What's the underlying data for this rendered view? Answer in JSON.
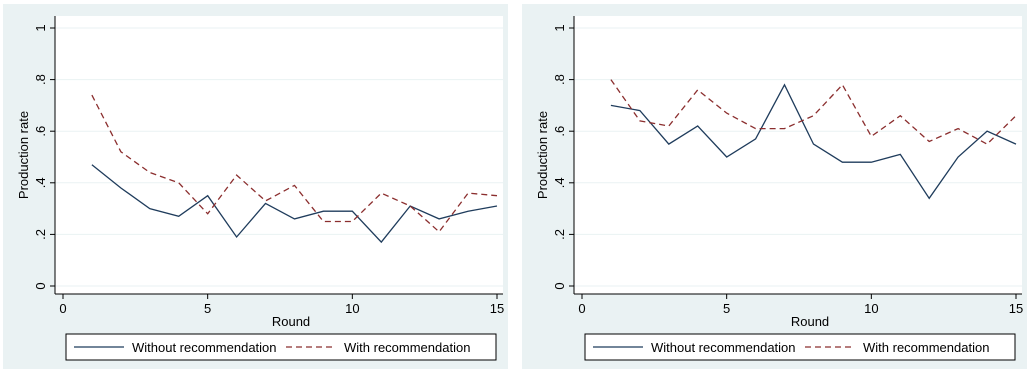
{
  "colors": {
    "panel_bg": "#eaf2f3",
    "plot_bg": "#ffffff",
    "grid": "#eaf2f3",
    "series_without": "#1f3c5c",
    "series_with": "#8b2e2e"
  },
  "chart_data": [
    {
      "type": "line",
      "xlabel": "Round",
      "ylabel": "Production rate",
      "xlim": [
        0,
        15
      ],
      "ylim": [
        0,
        1
      ],
      "xticks": [
        0,
        5,
        10,
        15
      ],
      "xtick_labels": [
        "0",
        "5",
        "10",
        "15"
      ],
      "yticks": [
        0,
        0.2,
        0.4,
        0.6,
        0.8,
        1
      ],
      "ytick_labels": [
        "0",
        ".2",
        ".4",
        ".6",
        ".8",
        "1"
      ],
      "grid": true,
      "legend_position": "bottom",
      "x": [
        1,
        2,
        3,
        4,
        5,
        6,
        7,
        8,
        9,
        10,
        11,
        12,
        13,
        14,
        15
      ],
      "series": [
        {
          "name": "Without recommendation",
          "style": "solid",
          "values": [
            0.47,
            0.38,
            0.3,
            0.27,
            0.35,
            0.19,
            0.32,
            0.26,
            0.29,
            0.29,
            0.17,
            0.31,
            0.26,
            0.29,
            0.31
          ]
        },
        {
          "name": "With recommendation",
          "style": "dashed",
          "values": [
            0.74,
            0.52,
            0.44,
            0.4,
            0.28,
            0.43,
            0.33,
            0.39,
            0.25,
            0.25,
            0.36,
            0.31,
            0.21,
            0.36,
            0.35
          ]
        }
      ]
    },
    {
      "type": "line",
      "xlabel": "Round",
      "ylabel": "Production rate",
      "xlim": [
        0,
        15
      ],
      "ylim": [
        0,
        1
      ],
      "xticks": [
        0,
        5,
        10,
        15
      ],
      "xtick_labels": [
        "0",
        "5",
        "10",
        "15"
      ],
      "yticks": [
        0,
        0.2,
        0.4,
        0.6,
        0.8,
        1
      ],
      "ytick_labels": [
        "0",
        ".2",
        ".4",
        ".6",
        ".8",
        "1"
      ],
      "grid": true,
      "legend_position": "bottom",
      "x": [
        1,
        2,
        3,
        4,
        5,
        6,
        7,
        8,
        9,
        10,
        11,
        12,
        13,
        14,
        15
      ],
      "series": [
        {
          "name": "Without recommendation",
          "style": "solid",
          "values": [
            0.7,
            0.68,
            0.55,
            0.62,
            0.5,
            0.57,
            0.78,
            0.55,
            0.48,
            0.48,
            0.51,
            0.34,
            0.5,
            0.6,
            0.55
          ]
        },
        {
          "name": "With recommendation",
          "style": "dashed",
          "values": [
            0.8,
            0.64,
            0.62,
            0.76,
            0.67,
            0.61,
            0.61,
            0.66,
            0.78,
            0.58,
            0.66,
            0.56,
            0.61,
            0.55,
            0.66
          ]
        }
      ]
    }
  ]
}
